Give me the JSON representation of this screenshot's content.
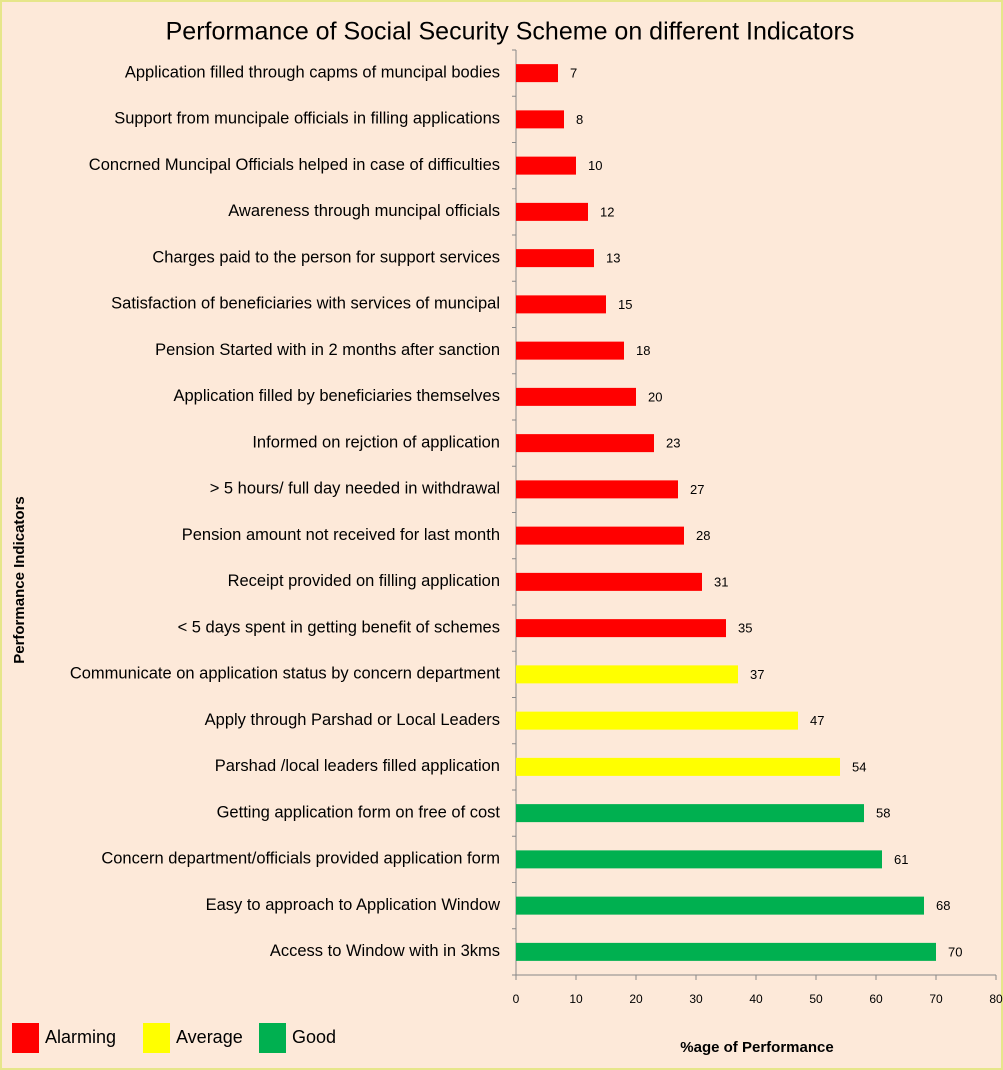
{
  "chart_data": {
    "type": "bar",
    "orientation": "horizontal",
    "title": "Performance  of Social Security Scheme  on different Indicators",
    "xlabel": "%age of Performance",
    "ylabel": "Performance Indicators",
    "categories": [
      "Application filled through capms of muncipal bodies",
      "Support from muncipale officials in filling applications",
      "Concrned Muncipal Officials helped in case of difficulties",
      "Awareness through muncipal officials",
      "Charges paid to the person for support services",
      "Satisfaction of beneficiaries with services of muncipal",
      "Pension Started with in 2 months after sanction",
      "Application filled by beneficiaries themselves",
      "Informed on rejction of application",
      "> 5 hours/ full day needed in withdrawal",
      "Pension amount not received for last month",
      "Receipt provided on filling application",
      "< 5 days spent in getting benefit of schemes",
      "Communicate on application status by concern department",
      "Apply through Parshad or Local Leaders",
      "Parshad /local leaders filled application",
      "Getting application form on free of cost",
      "Concern department/officials provided application form",
      "Easy to approach to Application Window",
      "Access to Window with in 3kms"
    ],
    "values": [
      7,
      8,
      10,
      12,
      13,
      15,
      18,
      20,
      23,
      27,
      28,
      31,
      35,
      37,
      47,
      54,
      58,
      61,
      68,
      70
    ],
    "colors": [
      "#ff0000",
      "#ff0000",
      "#ff0000",
      "#ff0000",
      "#ff0000",
      "#ff0000",
      "#ff0000",
      "#ff0000",
      "#ff0000",
      "#ff0000",
      "#ff0000",
      "#ff0000",
      "#ff0000",
      "#ffff00",
      "#ffff00",
      "#ffff00",
      "#00b050",
      "#00b050",
      "#00b050",
      "#00b050"
    ],
    "legend": [
      {
        "name": "Alarming",
        "color": "#ff0000"
      },
      {
        "name": "Average",
        "color": "#ffff00"
      },
      {
        "name": "Good",
        "color": "#00b050"
      }
    ],
    "xlim": [
      0,
      80
    ],
    "xticks": [
      0,
      10,
      20,
      30,
      40,
      50,
      60,
      70,
      80
    ],
    "grid": false
  }
}
